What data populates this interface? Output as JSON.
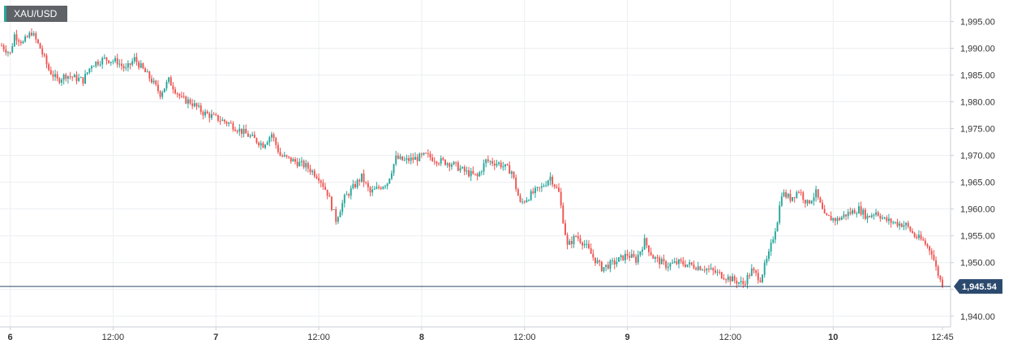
{
  "symbol": "XAU/USD",
  "chart_data": {
    "type": "candlestick",
    "symbol": "XAU/USD",
    "ylim": [
      1938,
      1999
    ],
    "yticks": [
      1940,
      1945,
      1950,
      1955,
      1960,
      1965,
      1970,
      1975,
      1980,
      1985,
      1990,
      1995
    ],
    "ytick_labels": [
      "1,940.00",
      "1,945.00",
      "1,950.00",
      "1,955.00",
      "1,960.00",
      "1,965.00",
      "1,970.00",
      "1,975.00",
      "1,980.00",
      "1,985.00",
      "1,990.00",
      "1,995.00"
    ],
    "x_range_hours": [
      -1,
      108.75
    ],
    "xticks": [
      {
        "hour": 0,
        "label": "6",
        "day": true
      },
      {
        "hour": 12,
        "label": "12:00",
        "day": false
      },
      {
        "hour": 24,
        "label": "7",
        "day": true
      },
      {
        "hour": 36,
        "label": "12:00",
        "day": false
      },
      {
        "hour": 48,
        "label": "8",
        "day": true
      },
      {
        "hour": 60,
        "label": "12:00",
        "day": false
      },
      {
        "hour": 72,
        "label": "9",
        "day": true
      },
      {
        "hour": 84,
        "label": "12:00",
        "day": false
      },
      {
        "hour": 96,
        "label": "10",
        "day": true
      },
      {
        "hour": 108.75,
        "label": "12:45",
        "day": false
      }
    ],
    "grid": true,
    "last_price": 1945.54,
    "last_price_label": "1,945.54",
    "price_path": [
      [
        -1,
        1990.5
      ],
      [
        0,
        1989
      ],
      [
        0.5,
        1992.5
      ],
      [
        1.5,
        1991
      ],
      [
        2.5,
        1993
      ],
      [
        3.5,
        1990
      ],
      [
        4.5,
        1986
      ],
      [
        5.5,
        1984
      ],
      [
        6.5,
        1985
      ],
      [
        7.5,
        1984.5
      ],
      [
        8.5,
        1984
      ],
      [
        9.5,
        1987
      ],
      [
        11,
        1988
      ],
      [
        12.5,
        1987.5
      ],
      [
        13.5,
        1986
      ],
      [
        14.5,
        1988
      ],
      [
        15.5,
        1986
      ],
      [
        16.5,
        1984
      ],
      [
        17.5,
        1981.5
      ],
      [
        18.5,
        1984
      ],
      [
        20,
        1980.5
      ],
      [
        21,
        1980
      ],
      [
        22.5,
        1978
      ],
      [
        24,
        1977
      ],
      [
        25.5,
        1976
      ],
      [
        26.5,
        1975
      ],
      [
        28,
        1973.5
      ],
      [
        29.5,
        1972
      ],
      [
        30.5,
        1974
      ],
      [
        31.5,
        1970
      ],
      [
        33,
        1969
      ],
      [
        34.5,
        1968
      ],
      [
        36,
        1966
      ],
      [
        37,
        1963
      ],
      [
        38,
        1958
      ],
      [
        39,
        1962
      ],
      [
        40,
        1964
      ],
      [
        41,
        1966
      ],
      [
        42,
        1963
      ],
      [
        43,
        1964
      ],
      [
        44,
        1965
      ],
      [
        45,
        1969.5
      ],
      [
        46,
        1969
      ],
      [
        47.5,
        1969.5
      ],
      [
        48.5,
        1970
      ],
      [
        50,
        1969
      ],
      [
        51.5,
        1968.5
      ],
      [
        53,
        1967
      ],
      [
        54.5,
        1966
      ],
      [
        55.5,
        1969
      ],
      [
        57,
        1968.5
      ],
      [
        58.5,
        1967
      ],
      [
        59.5,
        1961
      ],
      [
        61,
        1963
      ],
      [
        62,
        1964
      ],
      [
        63,
        1966
      ],
      [
        64,
        1963
      ],
      [
        65,
        1953
      ],
      [
        66,
        1955
      ],
      [
        67,
        1953.5
      ],
      [
        68,
        1951
      ],
      [
        69,
        1949
      ],
      [
        70.5,
        1950
      ],
      [
        72,
        1951.5
      ],
      [
        73,
        1950.5
      ],
      [
        74,
        1954
      ],
      [
        75,
        1951
      ],
      [
        76.5,
        1949.5
      ],
      [
        78,
        1950
      ],
      [
        79.5,
        1949.5
      ],
      [
        81,
        1949
      ],
      [
        82.5,
        1948
      ],
      [
        84,
        1947
      ],
      [
        85.5,
        1946
      ],
      [
        86.5,
        1948.5
      ],
      [
        87.5,
        1947
      ],
      [
        88.5,
        1951.5
      ],
      [
        89.5,
        1958
      ],
      [
        90,
        1963
      ],
      [
        91,
        1962
      ],
      [
        92,
        1963.5
      ],
      [
        93,
        1961
      ],
      [
        94,
        1963
      ],
      [
        95,
        1958.5
      ],
      [
        96.5,
        1958
      ],
      [
        97.5,
        1959
      ],
      [
        99,
        1960
      ],
      [
        100,
        1958.5
      ],
      [
        101,
        1959.5
      ],
      [
        102,
        1958
      ],
      [
        103,
        1957.5
      ],
      [
        104.5,
        1957
      ],
      [
        105.5,
        1955
      ],
      [
        106.5,
        1954
      ],
      [
        107.5,
        1952
      ],
      [
        108,
        1949
      ],
      [
        108.75,
        1945.54
      ]
    ]
  }
}
